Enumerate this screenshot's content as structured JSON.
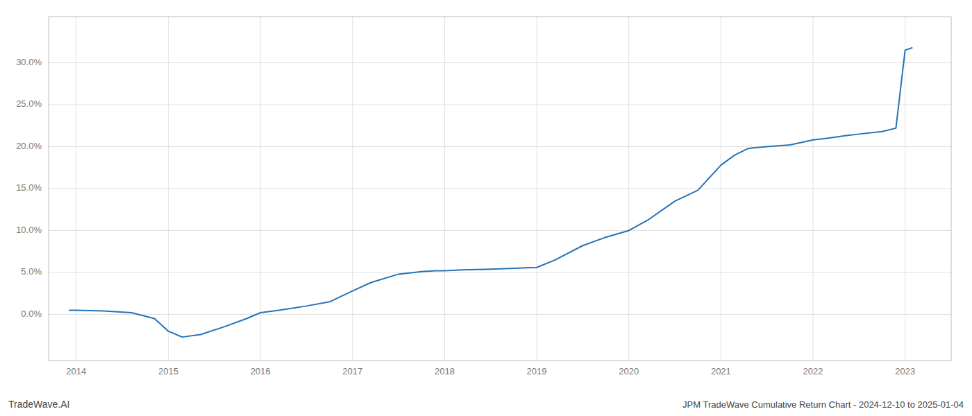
{
  "chart_data": {
    "type": "line",
    "title": "JPM TradeWave Cumulative Return Chart - 2024-12-10 to 2025-01-04",
    "annotations": [
      "TradeWave.AI"
    ],
    "x": [
      2013.92,
      2014.0,
      2014.3,
      2014.6,
      2014.85,
      2015.0,
      2015.15,
      2015.35,
      2015.6,
      2015.85,
      2016.0,
      2016.2,
      2016.5,
      2016.75,
      2017.0,
      2017.2,
      2017.5,
      2017.75,
      2017.9,
      2018.0,
      2018.2,
      2018.5,
      2018.75,
      2019.0,
      2019.2,
      2019.5,
      2019.75,
      2020.0,
      2020.2,
      2020.5,
      2020.75,
      2021.0,
      2021.15,
      2021.3,
      2021.5,
      2021.75,
      2022.0,
      2022.15,
      2022.35,
      2022.5,
      2022.75,
      2022.9,
      2023.0,
      2023.08
    ],
    "values": [
      0.005,
      0.005,
      0.004,
      0.002,
      -0.005,
      -0.02,
      -0.027,
      -0.024,
      -0.015,
      -0.005,
      0.002,
      0.005,
      0.01,
      0.015,
      0.028,
      0.038,
      0.048,
      0.051,
      0.052,
      0.052,
      0.053,
      0.054,
      0.055,
      0.056,
      0.065,
      0.082,
      0.092,
      0.1,
      0.112,
      0.135,
      0.148,
      0.178,
      0.19,
      0.198,
      0.2,
      0.202,
      0.208,
      0.21,
      0.213,
      0.215,
      0.218,
      0.222,
      0.315,
      0.318
    ],
    "color": "#2473b7",
    "xlim": [
      2013.7,
      2023.5
    ],
    "ylim": [
      -0.055,
      0.355
    ],
    "xticks": [
      2014,
      2015,
      2016,
      2017,
      2018,
      2019,
      2020,
      2021,
      2022,
      2023
    ],
    "yticks": [
      {
        "value": 0.0,
        "label": "0.0%"
      },
      {
        "value": 0.05,
        "label": "5.0%"
      },
      {
        "value": 0.1,
        "label": "10.0%"
      },
      {
        "value": 0.15,
        "label": "15.0%"
      },
      {
        "value": 0.2,
        "label": "20.0%"
      },
      {
        "value": 0.25,
        "label": "25.0%"
      },
      {
        "value": 0.3,
        "label": "30.0%"
      }
    ],
    "grid": true
  }
}
